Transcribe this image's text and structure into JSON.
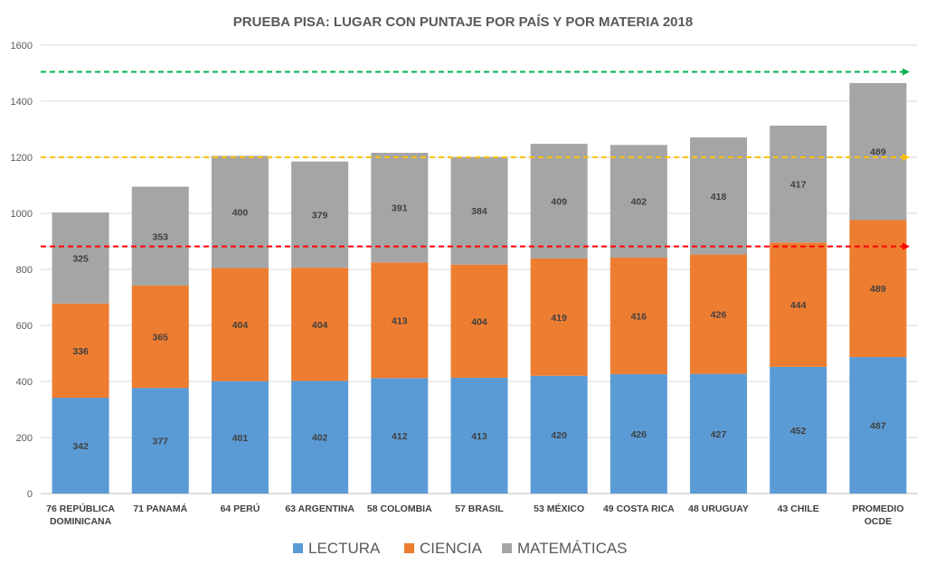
{
  "chart_data": {
    "type": "bar",
    "stacked": true,
    "title": "PRUEBA PISA:  LUGAR CON PUNTAJE POR PAÍS Y POR MATERIA 2018",
    "categories": [
      [
        "76 REPÚBLICA",
        "DOMINICANA"
      ],
      [
        "71 PANAMÁ"
      ],
      [
        "64 PERÚ"
      ],
      [
        "63 ARGENTINA"
      ],
      [
        "58 COLOMBIA"
      ],
      [
        "57 BRASIL"
      ],
      [
        "53 MÉXICO"
      ],
      [
        "49 COSTA RICA"
      ],
      [
        "48 URUGUAY"
      ],
      [
        "43 CHILE"
      ],
      [
        "PROMEDIO",
        "OCDE"
      ]
    ],
    "series": [
      {
        "name": "LECTURA",
        "color": "#5B9BD5",
        "values": [
          342,
          377,
          401,
          402,
          412,
          413,
          420,
          426,
          427,
          452,
          487
        ]
      },
      {
        "name": "CIENCIA",
        "color": "#ED7D31",
        "values": [
          336,
          365,
          404,
          404,
          413,
          404,
          419,
          416,
          426,
          444,
          489
        ]
      },
      {
        "name": "MATEMÁTICAS",
        "color": "#A5A5A5",
        "values": [
          325,
          353,
          400,
          379,
          391,
          384,
          409,
          402,
          418,
          417,
          489
        ]
      }
    ],
    "ylim": [
      0,
      1600
    ],
    "yticks": [
      "0",
      "200",
      "400",
      "600",
      "800",
      "1000",
      "1200",
      "1400",
      "1600"
    ],
    "ytick_values": [
      0,
      200,
      400,
      600,
      800,
      1000,
      1200,
      1400,
      1600
    ],
    "reference_lines": [
      {
        "value": 1505,
        "color": "#00B050"
      },
      {
        "value": 1200,
        "color": "#FFC000"
      },
      {
        "value": 882,
        "color": "#FF0000"
      }
    ],
    "grid": true,
    "legend_position": "bottom"
  }
}
